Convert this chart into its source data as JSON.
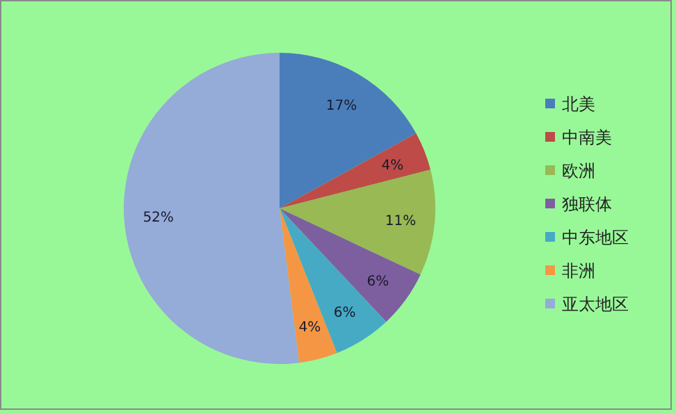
{
  "chart_data": {
    "type": "pie",
    "categories": [
      "北美",
      "中南美",
      "欧洲",
      "独联体",
      "中东地区",
      "非洲",
      "亚太地区"
    ],
    "values": [
      17,
      4,
      11,
      6,
      6,
      4,
      52
    ],
    "value_labels": [
      "17%",
      "4%",
      "11%",
      "6%",
      "6%",
      "4%",
      "52%"
    ],
    "colors": [
      "#4a7ebb",
      "#be4b48",
      "#98b954",
      "#7d5fa0",
      "#46aac5",
      "#f59645",
      "#95abd8"
    ],
    "legend": "right"
  }
}
